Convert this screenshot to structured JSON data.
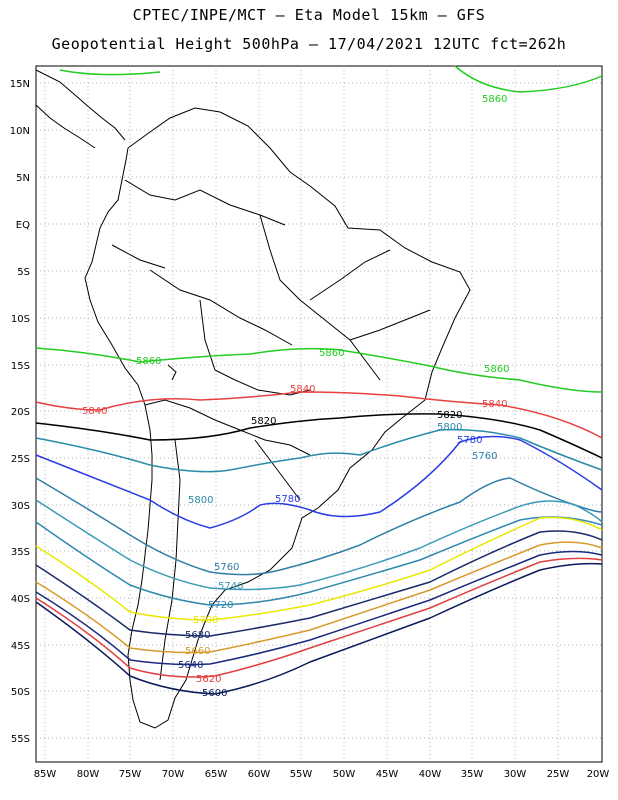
{
  "title_line1": "CPTEC/INPE/MCT –  Eta Model 15km – GFS",
  "title_line2": "Geopotential Height 500hPa – 17/04/2021 12UTC fct=262h",
  "lat_labels": [
    "15N",
    "10N",
    "5N",
    "EQ",
    "5S",
    "10S",
    "15S",
    "20S",
    "25S",
    "30S",
    "35S",
    "40S",
    "45S",
    "50S",
    "55S"
  ],
  "lon_labels": [
    "85W",
    "80W",
    "75W",
    "70W",
    "65W",
    "60W",
    "55W",
    "50W",
    "45W",
    "40W",
    "35W",
    "30W",
    "25W",
    "20W"
  ],
  "contours": [
    {
      "level": "5860",
      "color": "#22cc22"
    },
    {
      "level": "5840",
      "color": "#e64040"
    },
    {
      "level": "5820",
      "color": "#000000"
    },
    {
      "level": "5800",
      "color": "#2a8aa8"
    },
    {
      "level": "5780",
      "color": "#2a3ce6"
    },
    {
      "level": "5760",
      "color": "#2f7ea8"
    },
    {
      "level": "5740",
      "color": "#3a9ab8"
    },
    {
      "level": "5720",
      "color": "#2f88b0"
    },
    {
      "level": "5700",
      "color": "#e8e800"
    },
    {
      "level": "5680",
      "color": "#1a2a6a"
    },
    {
      "level": "5660",
      "color": "#d89a2a"
    },
    {
      "level": "5640",
      "color": "#1a2a80"
    },
    {
      "level": "5620",
      "color": "#e04040"
    },
    {
      "level": "5600",
      "color": "#0a1a5a"
    }
  ]
}
